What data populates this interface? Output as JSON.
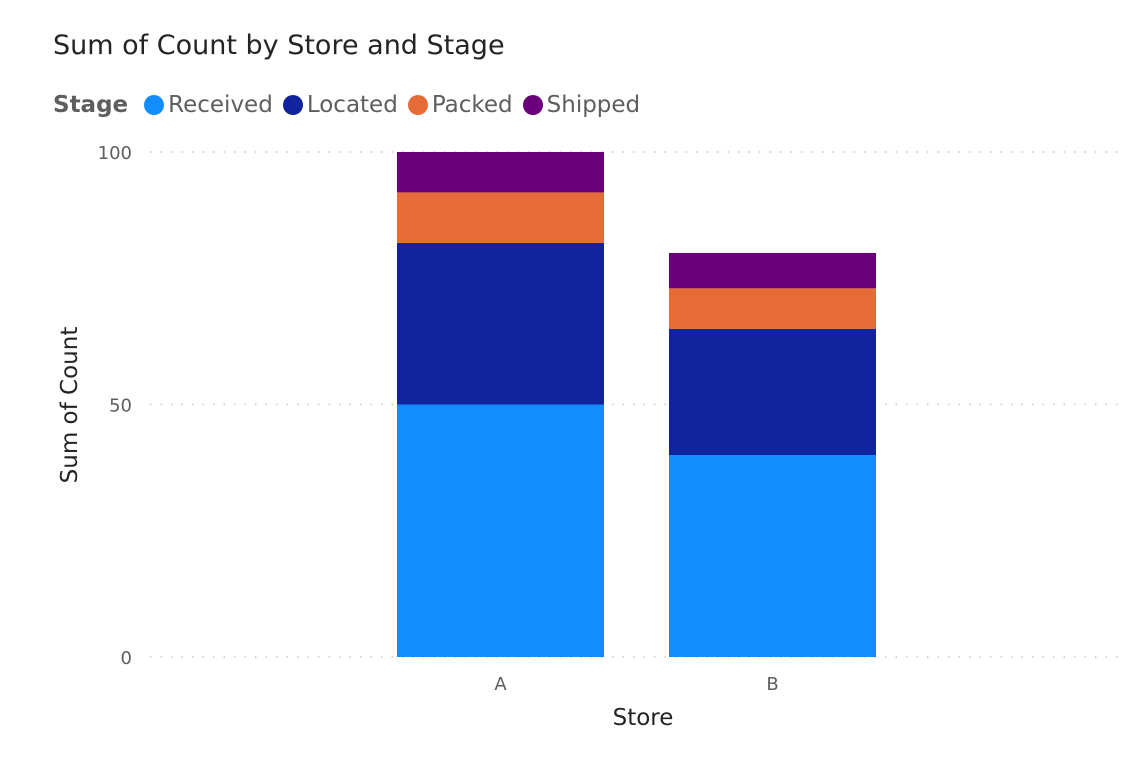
{
  "chart_data": {
    "type": "bar",
    "stacked": true,
    "title": "Sum of Count by Store and Stage",
    "xlabel": "Store",
    "ylabel": "Sum of Count",
    "legend_title": "Stage",
    "legend_placement": "top-left",
    "grid": true,
    "ylim": [
      0,
      100
    ],
    "yticks": [
      0,
      50,
      100
    ],
    "categories": [
      "A",
      "B"
    ],
    "series": [
      {
        "name": "Received",
        "color": "#118dff",
        "values": [
          50,
          40
        ]
      },
      {
        "name": "Located",
        "color": "#12239e",
        "values": [
          32,
          25
        ]
      },
      {
        "name": "Packed",
        "color": "#e66c37",
        "values": [
          10,
          8
        ]
      },
      {
        "name": "Shipped",
        "color": "#6b007b",
        "values": [
          8,
          7
        ]
      }
    ]
  }
}
